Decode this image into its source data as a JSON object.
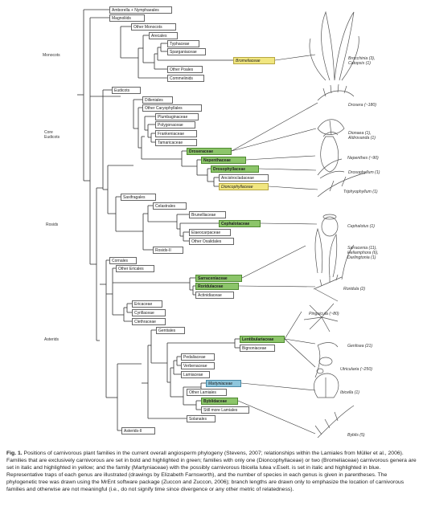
{
  "tree": {
    "labels": [
      {
        "id": "amborella",
        "text": "Amborella + Nymphaeales",
        "hl": "none"
      },
      {
        "id": "magnoliids",
        "text": "Magnoliids",
        "hl": "none"
      },
      {
        "id": "other_monocots",
        "text": "Other Monocots",
        "hl": "none"
      },
      {
        "id": "arecales",
        "text": "Arecales",
        "hl": "none"
      },
      {
        "id": "typhaceae",
        "text": "Typhaceae",
        "hl": "none"
      },
      {
        "id": "sparganiaceae",
        "text": "Sparganiaceae",
        "hl": "none"
      },
      {
        "id": "bromeliaceae",
        "text": "Bromeliaceae",
        "hl": "yellow"
      },
      {
        "id": "other_poales",
        "text": "Other Poales",
        "hl": "none"
      },
      {
        "id": "commelinids",
        "text": "Commelinids",
        "hl": "none"
      },
      {
        "id": "eudicots",
        "text": "Eudicots",
        "hl": "none"
      },
      {
        "id": "dilleniales",
        "text": "Dilleniales",
        "hl": "none"
      },
      {
        "id": "other_caryophyllales",
        "text": "Other Caryophyllales",
        "hl": "none"
      },
      {
        "id": "plumbaginaceae",
        "text": "Plumbaginaceae",
        "hl": "none"
      },
      {
        "id": "polygonaceae",
        "text": "Polygonaceae",
        "hl": "none"
      },
      {
        "id": "frankeniaceae",
        "text": "Frankeniaceae",
        "hl": "none"
      },
      {
        "id": "tamaricaceae",
        "text": "Tamaricaceae",
        "hl": "none"
      },
      {
        "id": "droseraceae",
        "text": "Droseraceae",
        "hl": "green"
      },
      {
        "id": "nepenthaceae",
        "text": "Nepenthaceae",
        "hl": "green"
      },
      {
        "id": "drosophyllaceae",
        "text": "Drosophyllaceae",
        "hl": "green"
      },
      {
        "id": "ancistrocladaceae",
        "text": "Ancistrocladaceae",
        "hl": "none"
      },
      {
        "id": "dioncophyllaceae",
        "text": "Dioncophyllaceae",
        "hl": "yellow"
      },
      {
        "id": "saxifragales",
        "text": "Saxifragales",
        "hl": "none"
      },
      {
        "id": "celastrales",
        "text": "Celastrales",
        "hl": "none"
      },
      {
        "id": "brunelliaceae",
        "text": "Brunelliaceae",
        "hl": "none"
      },
      {
        "id": "cephalotaceae",
        "text": "Cephalotaceae",
        "hl": "green"
      },
      {
        "id": "elaeocarpaceae",
        "text": "Elaeocarpaceae",
        "hl": "none"
      },
      {
        "id": "other_oxalidales",
        "text": "Other Oxalidales",
        "hl": "none"
      },
      {
        "id": "rosids_ii",
        "text": "Rosids-II",
        "hl": "none"
      },
      {
        "id": "cornales",
        "text": "Cornales",
        "hl": "none"
      },
      {
        "id": "other_ericales",
        "text": "Other Ericales",
        "hl": "none"
      },
      {
        "id": "sarraceniaceae",
        "text": "Sarraceniaceae",
        "hl": "green"
      },
      {
        "id": "roridulaceae",
        "text": "Roridulaceae",
        "hl": "green"
      },
      {
        "id": "actinidiaceae",
        "text": "Actinidiaceae",
        "hl": "none"
      },
      {
        "id": "ericaceae",
        "text": "Ericaceae",
        "hl": "none"
      },
      {
        "id": "cyrillaceae",
        "text": "Cyrillaceae",
        "hl": "none"
      },
      {
        "id": "clethraceae",
        "text": "Clethraceae",
        "hl": "none"
      },
      {
        "id": "gentiales",
        "text": "Gentiales",
        "hl": "none"
      },
      {
        "id": "lentibulariaceae",
        "text": "Lentibulariaceae",
        "hl": "green"
      },
      {
        "id": "bignoniaceae",
        "text": "Bignoniaceae",
        "hl": "none"
      },
      {
        "id": "pedaliaceae",
        "text": "Pedaliaceae",
        "hl": "none"
      },
      {
        "id": "verbenaceae",
        "text": "Verbenaceae",
        "hl": "none"
      },
      {
        "id": "lamiaceae",
        "text": "Lamiaceae",
        "hl": "none"
      },
      {
        "id": "martyniaceae",
        "text": "Martyniaceae",
        "hl": "blue"
      },
      {
        "id": "other_lamiales",
        "text": "Other Lamiales",
        "hl": "none"
      },
      {
        "id": "byblidaceae",
        "text": "Byblidaceae",
        "hl": "green"
      },
      {
        "id": "still_more_lamiales",
        "text": "Still more Lamiales",
        "hl": "none"
      },
      {
        "id": "solanales",
        "text": "Solanales",
        "hl": "none"
      },
      {
        "id": "asterids_ii",
        "text": "Asterids-II",
        "hl": "none"
      }
    ],
    "groups": [
      {
        "id": "monocots",
        "text": "Monocots"
      },
      {
        "id": "core_eudicots",
        "text": "Core\nEudicots"
      },
      {
        "id": "rosids",
        "text": "Rosids"
      },
      {
        "id": "asterids",
        "text": "Asterids"
      }
    ],
    "genera": [
      {
        "id": "brocchinia",
        "text": "Brocchinia (3),\nCatopsis (1)"
      },
      {
        "id": "drosera",
        "text": "Drosera (~180)"
      },
      {
        "id": "dionaea",
        "text": "Dionaea (1),\nAldrovanda (1)"
      },
      {
        "id": "nepenthes",
        "text": "Nepenthes (~90)"
      },
      {
        "id": "drosophyllum",
        "text": "Drosophyllum (1)"
      },
      {
        "id": "triphyophyllum",
        "text": "Triphyophyllum (1)"
      },
      {
        "id": "cephalotus",
        "text": "Cephalotus (1)"
      },
      {
        "id": "sarracenia",
        "text": "Sarracenia (11),\nHeliamphora (6),\nDarlingtonia (1)"
      },
      {
        "id": "roridula",
        "text": "Roridula (2)"
      },
      {
        "id": "pinguicula",
        "text": "Pinguicula (~80)"
      },
      {
        "id": "genlisea",
        "text": "Genlisea (21)"
      },
      {
        "id": "utricularia",
        "text": "Utricularia (~250)"
      },
      {
        "id": "ibicella",
        "text": "Ibicella (1)"
      },
      {
        "id": "byblis",
        "text": "Byblis (5)"
      }
    ]
  },
  "caption": {
    "bold": "Fig. 1.",
    "text": "Positions of carnivorous plant families in the current overall angiosperm phylogeny (Stevens, 2007; relationships within the Lamiales from Müller et al., 2006). Families that are exclusively carnivorous are set in bold and highlighted in green; families with only one (Dioncophyllaceae) or two (Bromeliaceae) carnivorous genera are set in italic and highlighted in yellow; and the family (Martyniaceae) with the possibly carnivorous Ibicella lutea v.Eselt. is set in italic and highlighted in blue. Representative traps of each genus are illustrated (drawings by Elizabeth Farnsworth), and the number of species in each genus is given in parentheses. The phylogenetic tree was drawn using the MrEnt software package (Zuccon and Zuccon, 2006); branch lengths are drawn only to emphasize the location of carnivorous families and otherwise are not meaningful (i.e., do not signify time since divergence or any other metric of relatedness)."
  },
  "colors": {
    "carnivorous_green": "#8cc56a",
    "partial_yellow": "#f1e680",
    "possible_blue": "#8ec6dc"
  }
}
